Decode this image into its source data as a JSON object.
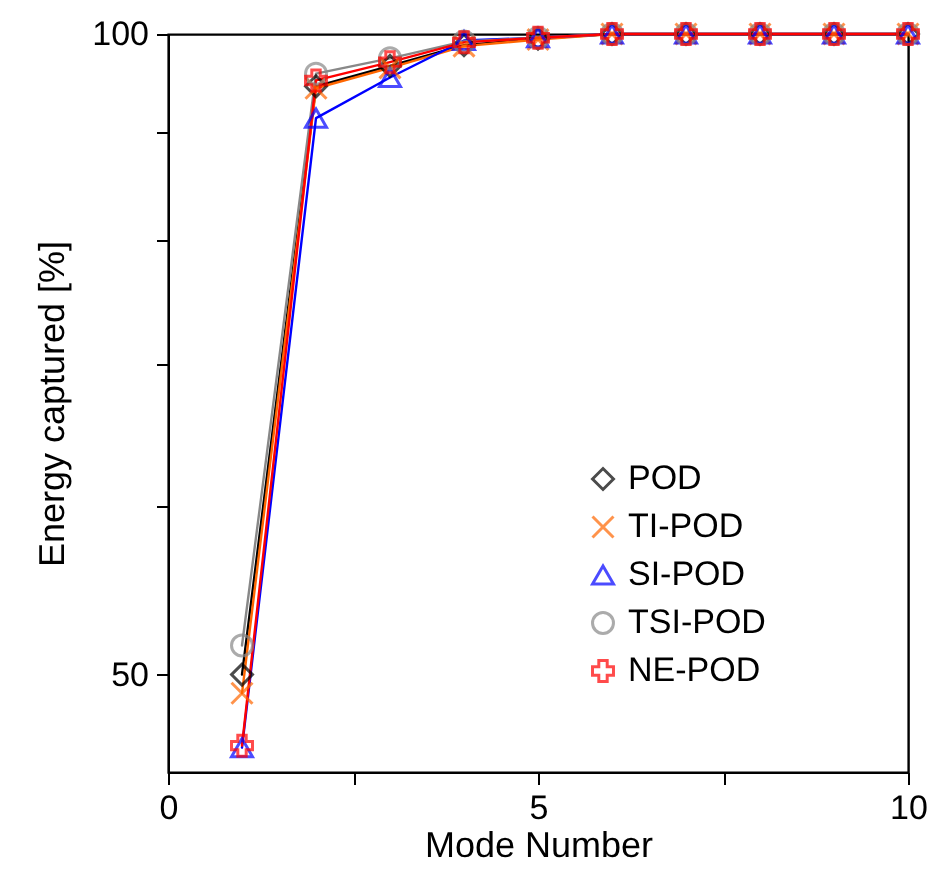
{
  "chart_data": {
    "type": "line",
    "xlabel": "Mode Number",
    "ylabel": "Energy captured [%]",
    "x": [
      1,
      2,
      3,
      4,
      5,
      6,
      7,
      8,
      9,
      10
    ],
    "xlim": [
      0,
      10
    ],
    "xticks": [
      0,
      {
        "value": 2.5,
        "label": null
      },
      5,
      {
        "value": 7.5,
        "label": null
      },
      10
    ],
    "ylim": [
      45,
      100
    ],
    "yticks": [
      50,
      {
        "value": 60,
        "label": null
      },
      {
        "value": 70,
        "label": null
      },
      {
        "value": 80,
        "label": null
      },
      {
        "value": 90,
        "label": null
      },
      100
    ],
    "log": true,
    "grid": false,
    "legend": "right",
    "line_style": "solid",
    "series": [
      {
        "name": "POD",
        "color": "#000000",
        "marker": "diamond",
        "values": [
          50,
          94.5,
          96.6,
          98.8,
          99.5,
          100,
          100,
          100,
          100,
          100
        ]
      },
      {
        "name": "TI-POD",
        "color": "#ff6600",
        "marker": "x",
        "values": [
          49,
          94.3,
          96.4,
          98.7,
          99.4,
          100,
          100,
          100,
          100,
          100
        ]
      },
      {
        "name": "SI-POD",
        "color": "#0000ff",
        "marker": "triangle",
        "values": [
          46.2,
          91.3,
          95.4,
          99.3,
          99.6,
          100,
          100,
          100,
          100,
          100
        ]
      },
      {
        "name": "TSI-POD",
        "color": "#888888",
        "marker": "circle",
        "values": [
          51.6,
          95.8,
          97.4,
          99.2,
          99.6,
          100,
          100,
          100,
          100,
          100
        ]
      },
      {
        "name": "NE-POD",
        "color": "#ff0000",
        "marker": "cross",
        "values": [
          46.3,
          95.1,
          97,
          99.1,
          99.6,
          100,
          100,
          100,
          100,
          100
        ]
      }
    ]
  }
}
